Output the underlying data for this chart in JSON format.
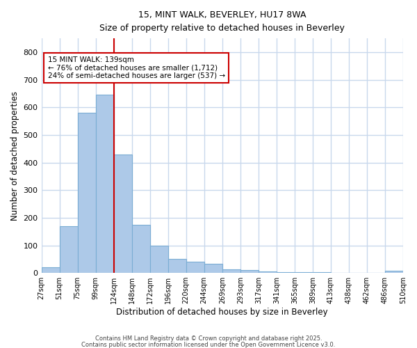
{
  "title1": "15, MINT WALK, BEVERLEY, HU17 8WA",
  "title2": "Size of property relative to detached houses in Beverley",
  "xlabel": "Distribution of detached houses by size in Beverley",
  "ylabel": "Number of detached properties",
  "bar_color": "#adc9e8",
  "bar_edge_color": "#7aadd4",
  "bar_values": [
    20,
    170,
    580,
    645,
    430,
    175,
    100,
    52,
    40,
    33,
    13,
    10,
    5,
    3,
    3,
    2,
    1,
    1,
    1,
    8
  ],
  "categories": [
    "27sqm",
    "51sqm",
    "75sqm",
    "99sqm",
    "124sqm",
    "148sqm",
    "172sqm",
    "196sqm",
    "220sqm",
    "244sqm",
    "269sqm",
    "293sqm",
    "317sqm",
    "341sqm",
    "365sqm",
    "389sqm",
    "413sqm",
    "438sqm",
    "462sqm",
    "486sqm",
    "510sqm"
  ],
  "vline_color": "#cc0000",
  "vline_x_index": 4,
  "annotation_text": "15 MINT WALK: 139sqm\n← 76% of detached houses are smaller (1,712)\n24% of semi-detached houses are larger (537) →",
  "annotation_box_color": "#ffffff",
  "annotation_box_edge": "#cc0000",
  "ylim": [
    0,
    850
  ],
  "yticks": [
    0,
    100,
    200,
    300,
    400,
    500,
    600,
    700,
    800
  ],
  "plot_bg_color": "#ffffff",
  "fig_bg_color": "#ffffff",
  "grid_color": "#c8d8ec",
  "footer1": "Contains HM Land Registry data © Crown copyright and database right 2025.",
  "footer2": "Contains public sector information licensed under the Open Government Licence v3.0."
}
